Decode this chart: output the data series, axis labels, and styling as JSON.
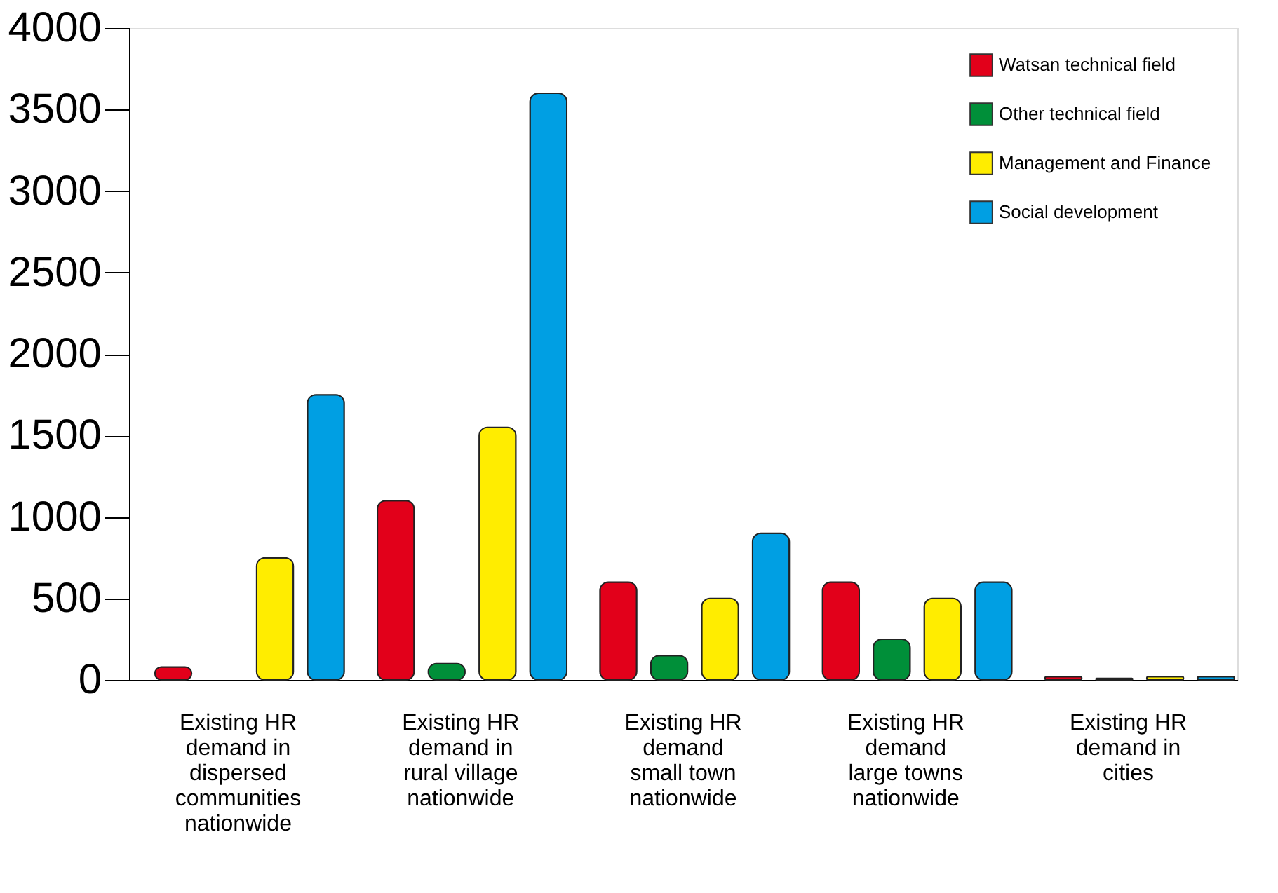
{
  "chart_data": {
    "type": "bar",
    "categories": [
      "Existing HR\ndemand in\ndispersed\ncommunities\nnationwide",
      "Existing HR\ndemand in\nrural village\nnationwide",
      "Existing HR\ndemand\nsmall town\nnationwide",
      "Existing HR\ndemand\nlarge towns\nnationwide",
      "Existing HR\ndemand in\ncities"
    ],
    "series": [
      {
        "name": "Watsan technical field",
        "color": "#e2001a",
        "values": [
          80,
          1100,
          600,
          600,
          20
        ]
      },
      {
        "name": "Other technical field",
        "color": "#008f39",
        "values": [
          null,
          100,
          150,
          250,
          10
        ]
      },
      {
        "name": "Management and Finance",
        "color": "#ffed00",
        "values": [
          750,
          1550,
          500,
          500,
          20
        ]
      },
      {
        "name": "Social development",
        "color": "#009fe3",
        "values": [
          1750,
          3600,
          900,
          600,
          20
        ]
      }
    ],
    "ylim": [
      0,
      4000
    ],
    "yticks": [
      0,
      500,
      1000,
      1500,
      2000,
      2500,
      3000,
      3500,
      4000
    ],
    "grid": false,
    "legend": "top right"
  }
}
